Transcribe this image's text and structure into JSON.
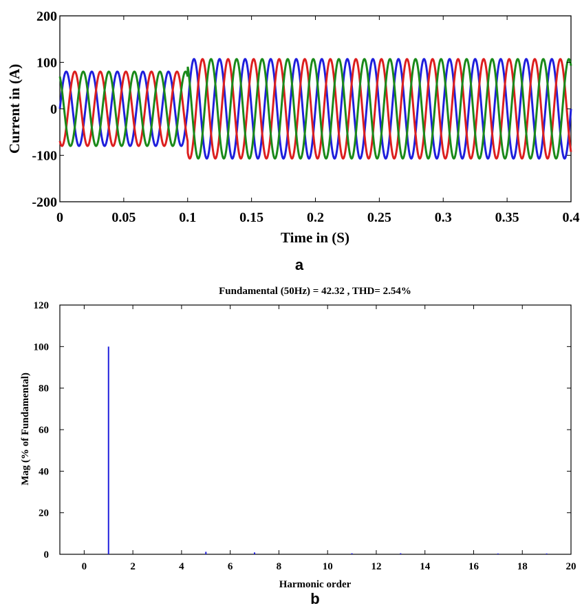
{
  "chart_data": [
    {
      "type": "line",
      "panel_label": "a",
      "title": "",
      "xlabel": "Time in (S)",
      "ylabel": "Current in (A)",
      "xlim": [
        0,
        0.4
      ],
      "ylim": [
        -200,
        200
      ],
      "xticks": [
        0,
        0.05,
        0.1,
        0.15,
        0.2,
        0.25,
        0.3,
        0.35,
        0.4
      ],
      "xtick_labels": [
        "0",
        "0.05",
        "0.1",
        "0.15",
        "0.2",
        "0.25",
        "0.3",
        "0.35",
        "0.4"
      ],
      "yticks": [
        -200,
        -100,
        0,
        100,
        200
      ],
      "ytick_labels": [
        "-200",
        "-100",
        "0",
        "100",
        "200"
      ],
      "grid": false,
      "legend": "none",
      "signal": {
        "frequency_hz": 50,
        "segments": [
          {
            "t_start": 0,
            "t_end": 0.1,
            "amplitude": 80
          },
          {
            "t_start": 0.1,
            "t_end": 0.4,
            "amplitude": 107
          }
        ]
      },
      "series": [
        {
          "phase_deg": 0,
          "color": "#1f1fdc"
        },
        {
          "phase_deg": -120,
          "color": "#dc1f1f"
        },
        {
          "phase_deg": 120,
          "color": "#1a8a1a"
        }
      ]
    },
    {
      "type": "bar",
      "panel_label": "b",
      "title": "Fundamental (50Hz) = 42.32 , THD= 2.54%",
      "xlabel": "Harmonic order",
      "ylabel": "Mag (% of Fundamental)",
      "xlim": [
        -1,
        20
      ],
      "ylim": [
        0,
        120
      ],
      "xticks": [
        0,
        2,
        4,
        6,
        8,
        10,
        12,
        14,
        16,
        18,
        20
      ],
      "xtick_labels": [
        "0",
        "2",
        "4",
        "6",
        "8",
        "10",
        "12",
        "14",
        "16",
        "18",
        "20"
      ],
      "yticks": [
        0,
        20,
        40,
        60,
        80,
        100,
        120
      ],
      "ytick_labels": [
        "0",
        "20",
        "40",
        "60",
        "80",
        "100",
        "120"
      ],
      "grid": false,
      "legend": "none",
      "bar_color": "#1f1fdc",
      "categories": [
        1,
        5,
        7,
        11,
        13,
        17,
        19
      ],
      "values": [
        100,
        1.2,
        0.9,
        0.5,
        0.5,
        0.4,
        0.4
      ]
    }
  ]
}
